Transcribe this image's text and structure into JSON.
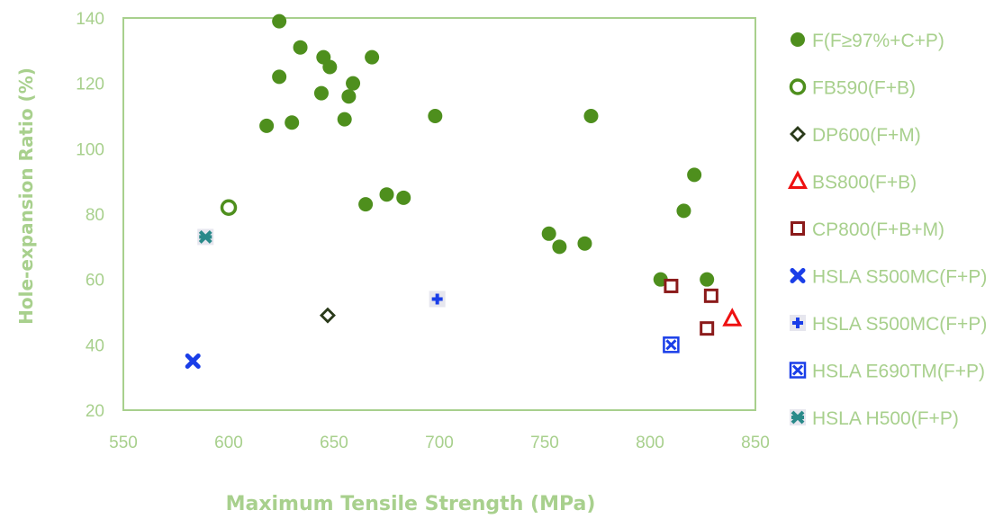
{
  "chart_data": {
    "type": "scatter",
    "title": "",
    "xlabel": "Maximum Tensile Strength (MPa)",
    "ylabel": "Hole-expansion Ratio (%)",
    "xlim": [
      550,
      850
    ],
    "ylim": [
      20,
      140
    ],
    "xticks": [
      550,
      600,
      650,
      700,
      750,
      800,
      850
    ],
    "yticks": [
      20,
      40,
      60,
      80,
      100,
      120,
      140
    ],
    "grid": false,
    "legend_position": "right",
    "colors": {
      "axis_text": "#a8d08d",
      "frame": "#a8d08d"
    },
    "series": [
      {
        "name": "F(F≥97%+C+P)",
        "marker": "filled-circle",
        "color": "#4e8f1d",
        "points": [
          [
            624,
            139
          ],
          [
            634,
            131
          ],
          [
            645,
            128
          ],
          [
            668,
            128
          ],
          [
            648,
            125
          ],
          [
            624,
            122
          ],
          [
            659,
            120
          ],
          [
            644,
            117
          ],
          [
            657,
            116
          ],
          [
            618,
            107
          ],
          [
            630,
            108
          ],
          [
            655,
            109
          ],
          [
            698,
            110
          ],
          [
            772,
            110
          ],
          [
            821,
            92
          ],
          [
            816,
            81
          ],
          [
            665,
            83
          ],
          [
            675,
            86
          ],
          [
            683,
            85
          ],
          [
            752,
            74
          ],
          [
            757,
            70
          ],
          [
            769,
            71
          ],
          [
            805,
            60
          ],
          [
            827,
            60
          ]
        ]
      },
      {
        "name": "FB590(F+B)",
        "marker": "open-circle",
        "color": "#4e8f1d",
        "points": [
          [
            600,
            82
          ]
        ]
      },
      {
        "name": "DP600(F+M)",
        "marker": "open-diamond",
        "color": "#2a3a1a",
        "points": [
          [
            647,
            49
          ]
        ]
      },
      {
        "name": "BS800(F+B)",
        "marker": "open-triangle",
        "color": "#ee1111",
        "points": [
          [
            839,
            48
          ]
        ]
      },
      {
        "name": "CP800(F+B+M)",
        "marker": "open-square",
        "color": "#8b1a1a",
        "points": [
          [
            810,
            58
          ],
          [
            829,
            55
          ],
          [
            827,
            45
          ]
        ]
      },
      {
        "name": "HSLA S500MC(F+P)",
        "marker": "x-bold",
        "color": "#1a3ee8",
        "points": [
          [
            583,
            35
          ]
        ]
      },
      {
        "name": "HSLA S500MC(F+P)",
        "marker": "plus-box",
        "color": "#1a3ee8",
        "points": [
          [
            699,
            54
          ]
        ]
      },
      {
        "name": "HSLA E690TM(F+P)",
        "marker": "x-box",
        "color": "#1a3ee8",
        "points": [
          [
            810,
            40
          ]
        ]
      },
      {
        "name": "HSLA H500(F+P)",
        "marker": "star-teal",
        "color": "#2a8a8a",
        "points": [
          [
            589,
            73
          ]
        ]
      }
    ]
  }
}
